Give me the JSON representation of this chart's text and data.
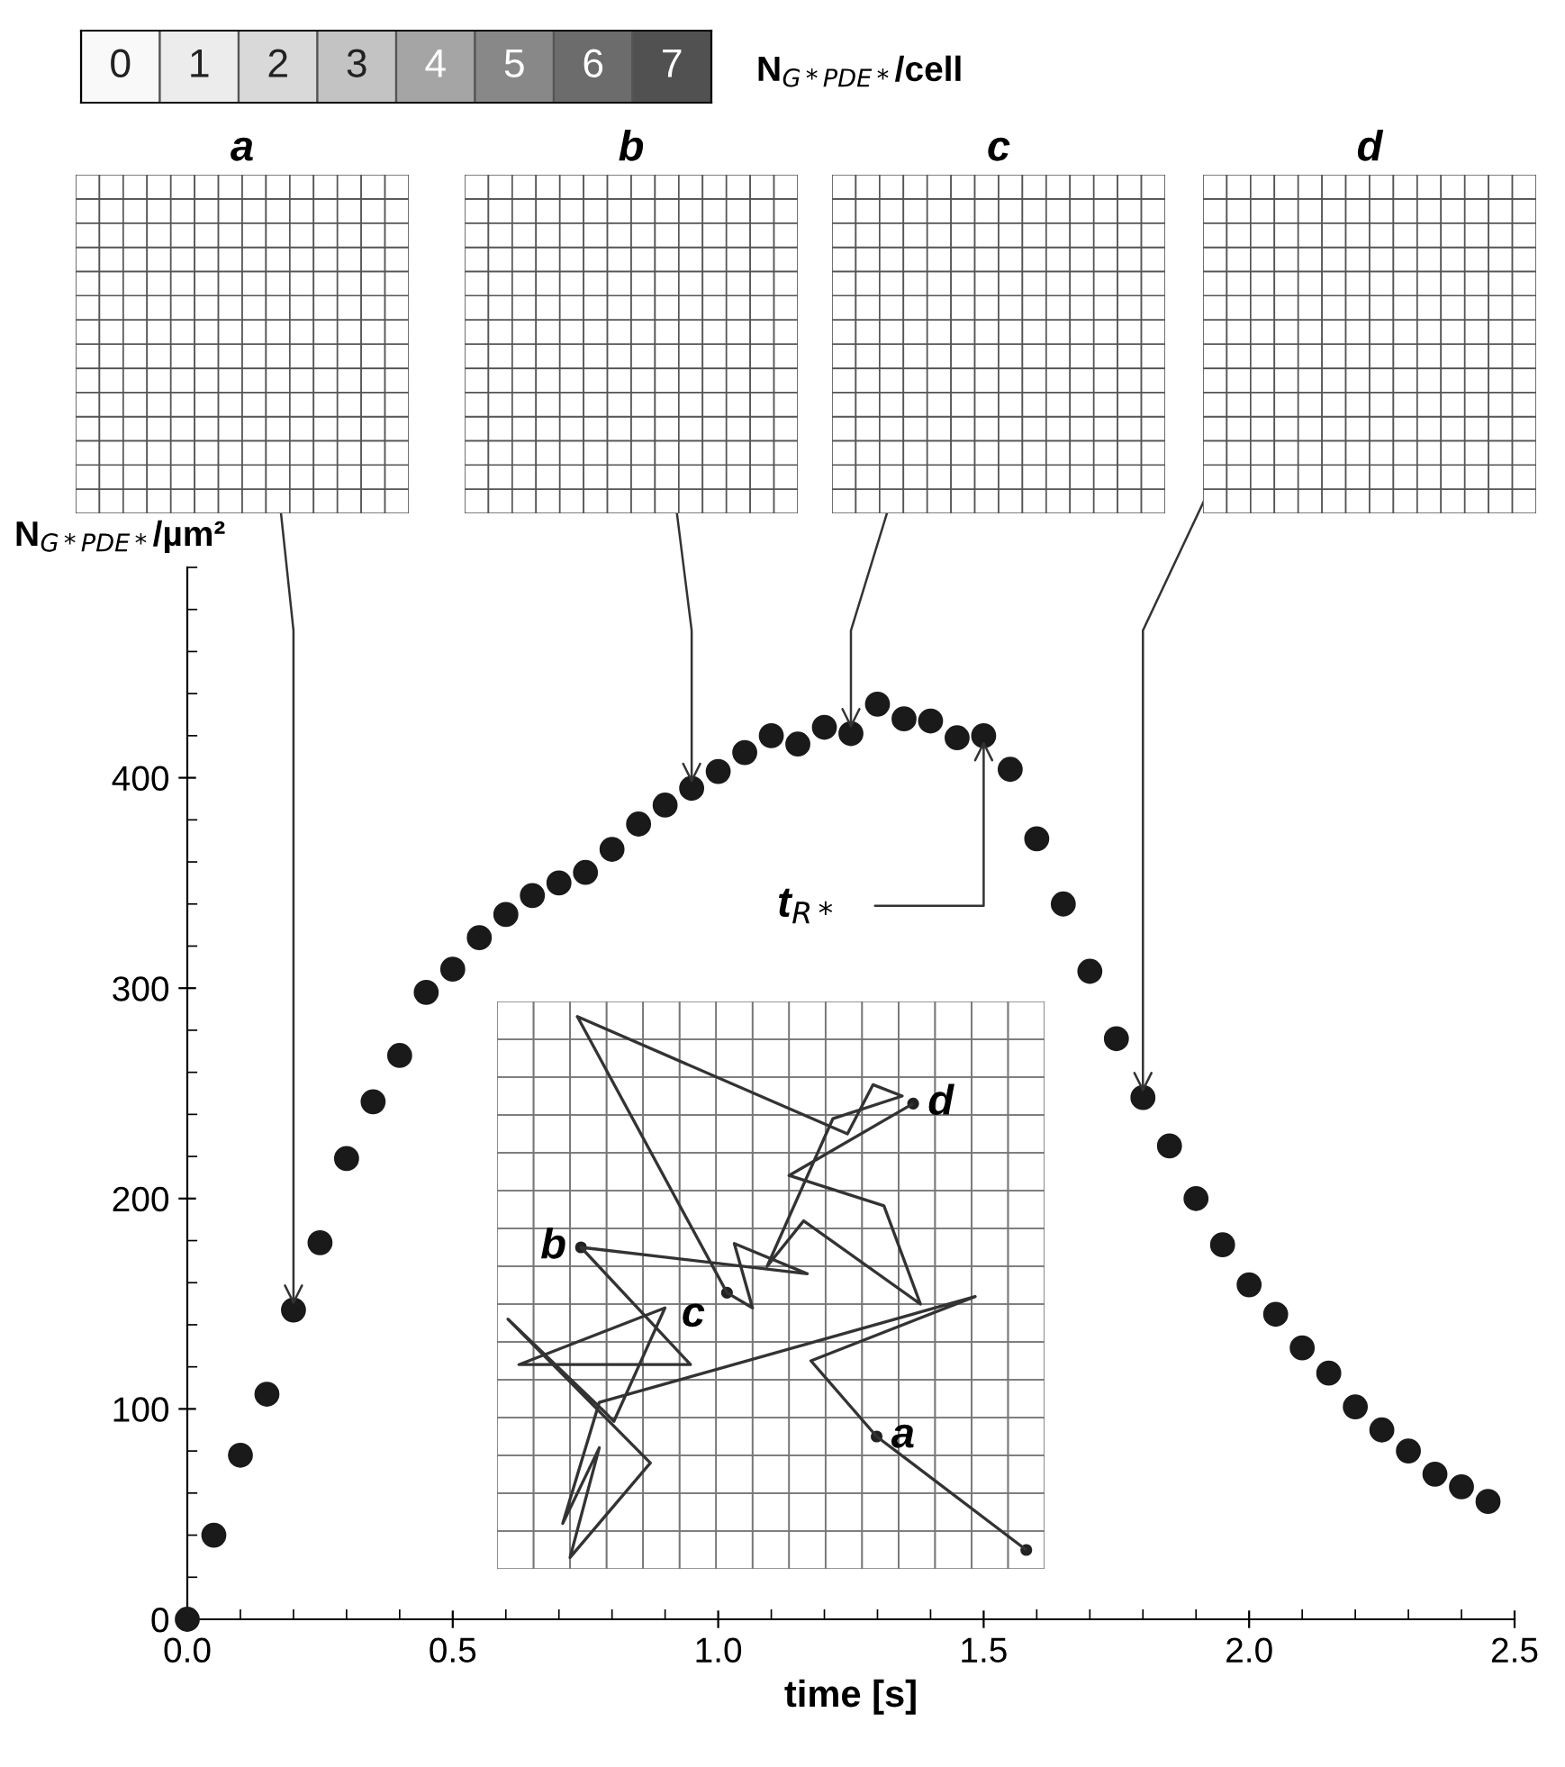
{
  "chart_data": {
    "type": "scatter",
    "xlabel": "time [s]",
    "ylabel": "N$_{G*PDE*}$/µm²",
    "marker": "circle",
    "x": [
      0,
      0.05,
      0.1,
      0.15,
      0.2,
      0.25,
      0.3,
      0.35,
      0.4,
      0.45,
      0.5,
      0.55,
      0.6,
      0.65,
      0.7,
      0.75,
      0.8,
      0.85,
      0.9,
      0.95,
      1.0,
      1.05,
      1.1,
      1.15,
      1.2,
      1.25,
      1.3,
      1.35,
      1.4,
      1.45,
      1.5,
      1.55,
      1.6,
      1.65,
      1.7,
      1.75,
      1.8,
      1.85,
      1.9,
      1.95,
      2.0,
      2.05,
      2.1,
      2.15,
      2.2,
      2.25,
      2.3,
      2.35,
      2.4,
      2.45
    ],
    "series": [
      {
        "color": "#1a1a1a",
        "values": [
          0,
          40,
          78,
          107,
          147,
          179,
          219,
          246,
          268,
          298,
          309,
          324,
          335,
          344,
          350,
          355,
          366,
          378,
          387,
          395,
          403,
          412,
          420,
          416,
          424,
          421,
          435,
          428,
          427,
          419,
          420,
          404,
          371,
          340,
          308,
          276,
          248,
          225,
          200,
          178,
          159,
          145,
          129,
          117,
          101,
          90,
          80,
          69,
          63,
          56
        ]
      }
    ],
    "xlim": [
      0,
      2.5
    ],
    "ylim": [
      0,
      500
    ],
    "xticks": [
      {
        "value": 0,
        "label": "0.0"
      },
      {
        "value": 0.1,
        "label": null
      },
      {
        "value": 0.2,
        "label": null
      },
      {
        "value": 0.3,
        "label": null
      },
      {
        "value": 0.4,
        "label": null
      },
      {
        "value": 0.5,
        "label": "0.5"
      },
      {
        "value": 0.6,
        "label": null
      },
      {
        "value": 0.7,
        "label": null
      },
      {
        "value": 0.8,
        "label": null
      },
      {
        "value": 0.9,
        "label": null
      },
      {
        "value": 1.0,
        "label": "1.0"
      },
      {
        "value": 1.1,
        "label": null
      },
      {
        "value": 1.2,
        "label": null
      },
      {
        "value": 1.3,
        "label": null
      },
      {
        "value": 1.4,
        "label": null
      },
      {
        "value": 1.5,
        "label": "1.5"
      },
      {
        "value": 1.6,
        "label": null
      },
      {
        "value": 1.7,
        "label": null
      },
      {
        "value": 1.8,
        "label": null
      },
      {
        "value": 1.9,
        "label": null
      },
      {
        "value": 2.0,
        "label": "2.0"
      },
      {
        "value": 2.1,
        "label": null
      },
      {
        "value": 2.2,
        "label": null
      },
      {
        "value": 2.3,
        "label": null
      },
      {
        "value": 2.4,
        "label": null
      },
      {
        "value": 2.5,
        "label": "2.5"
      }
    ],
    "yticks": [
      0,
      {
        "value": 20,
        "label": null
      },
      {
        "value": 40,
        "label": null
      },
      {
        "value": 60,
        "label": null
      },
      {
        "value": 80,
        "label": null
      },
      100,
      {
        "value": 120,
        "label": null
      },
      {
        "value": 140,
        "label": null
      },
      {
        "value": 160,
        "label": null
      },
      {
        "value": 180,
        "label": null
      },
      200,
      {
        "value": 220,
        "label": null
      },
      {
        "value": 240,
        "label": null
      },
      {
        "value": 260,
        "label": null
      },
      {
        "value": 280,
        "label": null
      },
      300,
      {
        "value": 320,
        "label": null
      },
      {
        "value": 340,
        "label": null
      },
      {
        "value": 360,
        "label": null
      },
      {
        "value": 380,
        "label": null
      },
      400,
      {
        "value": 420,
        "label": null
      },
      {
        "value": 440,
        "label": null
      },
      {
        "value": 460,
        "label": null
      },
      {
        "value": 480,
        "label": null
      },
      {
        "value": 500,
        "label": null
      }
    ],
    "clim": [
      0,
      8
    ],
    "clabel": "N$_{G*PDE*}$/cell",
    "cticks": [
      {
        "value": 0.5,
        "label": "0"
      },
      {
        "value": 1.5,
        "label": "1"
      },
      {
        "value": 2.5,
        "label": "2"
      },
      {
        "value": 3.5,
        "label": "3"
      },
      {
        "value": 4.5,
        "label": "4"
      },
      {
        "value": 5.5,
        "label": "5"
      },
      {
        "value": 6.5,
        "label": "6"
      },
      {
        "value": 7.5,
        "label": "7"
      }
    ],
    "annotations": [
      {
        "text": "a",
        "x": 0.2,
        "y": 147
      },
      {
        "text": "b",
        "x": 0.95,
        "y": 395
      },
      {
        "text": "c",
        "x": 1.25,
        "y": 421
      },
      {
        "text": "d",
        "x": 1.8,
        "y": 248
      },
      {
        "text": "t$_{R*}$",
        "x": 1.5,
        "y": 420
      },
      "a",
      "b",
      "c",
      "d"
    ]
  }
}
